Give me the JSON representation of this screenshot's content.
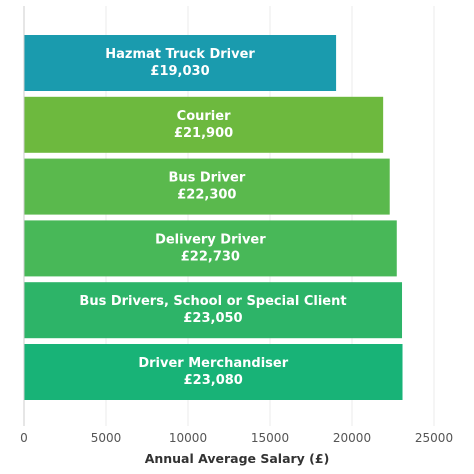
{
  "chart_data": {
    "type": "bar",
    "orientation": "horizontal",
    "categories": [
      "Hazmat Truck Driver",
      "Courier",
      "Bus Driver",
      "Delivery Driver",
      "Bus Drivers, School or Special Client",
      "Driver Merchandiser"
    ],
    "values": [
      19030,
      21900,
      22300,
      22730,
      23050,
      23080
    ],
    "value_labels": [
      "£19,030",
      "£21,900",
      "£22,300",
      "£22,730",
      "£23,050",
      "£23,080"
    ],
    "colors": [
      "#1a9bae",
      "#6db93e",
      "#5ab94d",
      "#48b858",
      "#2db468",
      "#18b377"
    ],
    "xlabel": "Annual Average Salary (£)",
    "ylabel": "",
    "xlim": [
      0,
      25000
    ],
    "xticks": [
      0,
      5000,
      10000,
      15000,
      20000,
      25000
    ],
    "grid": true
  }
}
